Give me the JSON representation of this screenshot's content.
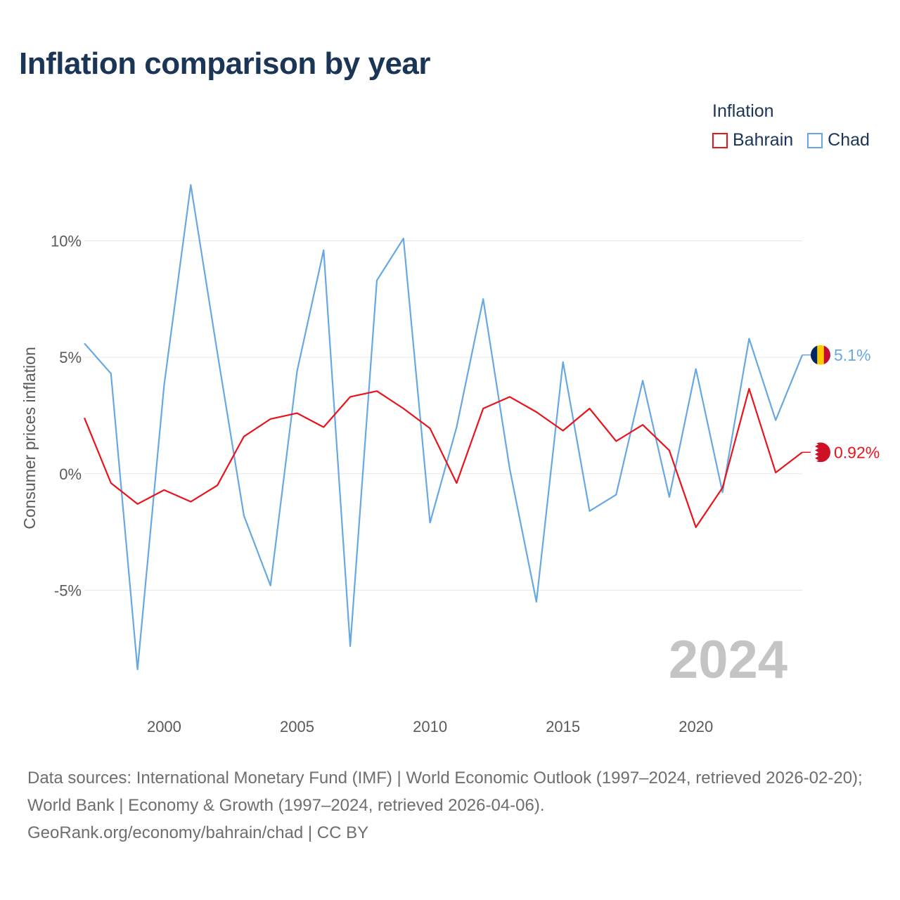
{
  "title": "Inflation comparison by year",
  "legend": {
    "title": "Inflation",
    "items": [
      {
        "name": "Bahrain",
        "color": "#e8141b"
      },
      {
        "name": "Chad",
        "color": "#67a8e3"
      }
    ]
  },
  "year_watermark": "2024",
  "footer": {
    "line1": "Data sources: International Monetary Fund (IMF) | World Economic Outlook (1997–2024, retrieved 2026-02-20); World Bank | Economy & Growth (1997–2024, retrieved 2026-04-06).",
    "line2": "GeoRank.org/economy/bahrain/chad | CC BY"
  },
  "chart_data": {
    "type": "line",
    "title": "Inflation comparison by year",
    "xlabel": "",
    "ylabel": "Consumer prices inflation",
    "xlim": [
      1997,
      2024
    ],
    "ylim": [
      -10,
      14
    ],
    "yticks": [
      -5,
      0,
      5,
      10
    ],
    "ytick_labels": [
      "-5%",
      "0%",
      "5%",
      "10%"
    ],
    "xticks": [
      2000,
      2005,
      2010,
      2015,
      2020
    ],
    "xtick_labels": [
      "2000",
      "2005",
      "2010",
      "2015",
      "2020"
    ],
    "grid": true,
    "legend_position": "top-right",
    "x": [
      1997,
      1998,
      1999,
      2000,
      2001,
      2002,
      2003,
      2004,
      2005,
      2006,
      2007,
      2008,
      2009,
      2010,
      2011,
      2012,
      2013,
      2014,
      2015,
      2016,
      2017,
      2018,
      2019,
      2020,
      2021,
      2022,
      2023,
      2024
    ],
    "series": [
      {
        "name": "Bahrain",
        "color": "#e8141b",
        "values": [
          2.4,
          -0.4,
          -1.3,
          -0.7,
          -1.2,
          -0.5,
          1.6,
          2.35,
          2.6,
          2.0,
          3.3,
          3.55,
          2.8,
          1.95,
          -0.4,
          2.8,
          3.3,
          2.65,
          1.85,
          2.8,
          1.4,
          2.1,
          1.0,
          -2.3,
          -0.6,
          3.65,
          0.05,
          0.92
        ],
        "end_label": "0.92%"
      },
      {
        "name": "Chad",
        "color": "#67a8e3",
        "values": [
          5.6,
          4.3,
          -8.4,
          3.8,
          12.4,
          5.2,
          -1.8,
          -4.8,
          4.4,
          9.6,
          -7.4,
          8.3,
          10.1,
          -2.1,
          2.0,
          7.5,
          0.2,
          -5.5,
          4.8,
          -1.6,
          -0.9,
          4.0,
          -1.0,
          4.5,
          -0.8,
          5.8,
          2.3,
          5.1
        ],
        "end_label": "5.1%"
      }
    ]
  }
}
